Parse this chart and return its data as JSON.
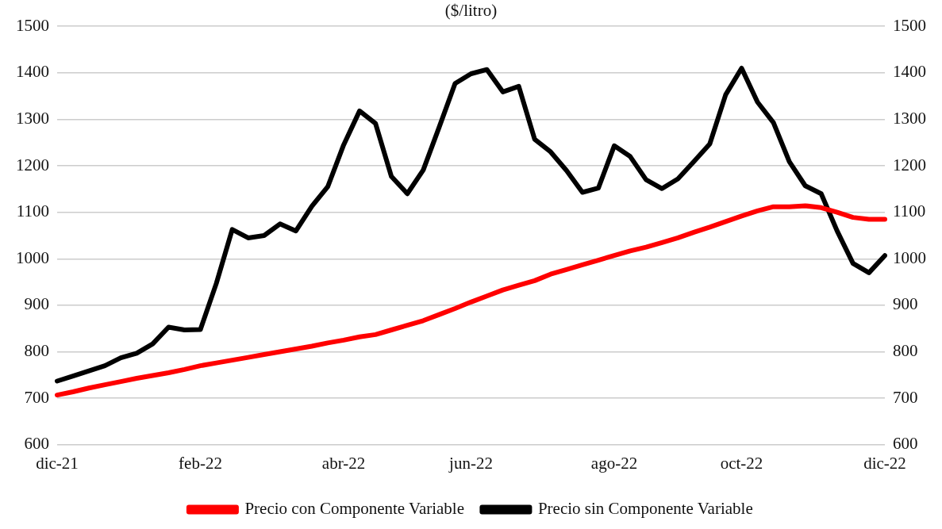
{
  "chart_data": {
    "type": "line",
    "title": "($/litro)",
    "categories": [
      "dic-21",
      null,
      null,
      null,
      null,
      null,
      null,
      null,
      null,
      "feb-22",
      null,
      null,
      null,
      null,
      null,
      null,
      null,
      null,
      "abr-22",
      null,
      null,
      null,
      null,
      null,
      null,
      null,
      "jun-22",
      null,
      null,
      null,
      null,
      null,
      null,
      null,
      null,
      "ago-22",
      null,
      null,
      null,
      null,
      null,
      null,
      null,
      "oct-22",
      null,
      null,
      null,
      null,
      null,
      null,
      null,
      null,
      "dic-22"
    ],
    "series": [
      {
        "name": "Precio con Componente Variable",
        "color": "#ff0000",
        "values": [
          707,
          714,
          722,
          729,
          736,
          743,
          749,
          755,
          762,
          770,
          776,
          782,
          788,
          794,
          800,
          806,
          812,
          819,
          825,
          832,
          837,
          847,
          857,
          867,
          880,
          893,
          907,
          920,
          933,
          943,
          953,
          967,
          977,
          987,
          997,
          1007,
          1017,
          1025,
          1035,
          1045,
          1057,
          1068,
          1080,
          1092,
          1103,
          1112,
          1112,
          1114,
          1110,
          1100,
          1089,
          1085,
          1085
        ]
      },
      {
        "name": "Precio sin Componente Variable",
        "color": "#000000",
        "values": [
          737,
          748,
          759,
          770,
          787,
          797,
          817,
          853,
          847,
          848,
          947,
          1063,
          1045,
          1050,
          1075,
          1060,
          1113,
          1155,
          1245,
          1318,
          1291,
          1177,
          1140,
          1191,
          1283,
          1377,
          1398,
          1407,
          1359,
          1371,
          1257,
          1230,
          1190,
          1143,
          1152,
          1243,
          1220,
          1170,
          1151,
          1172,
          1209,
          1247,
          1353,
          1410,
          1337,
          1293,
          1209,
          1157,
          1140,
          1060,
          990,
          970,
          1007
        ]
      }
    ],
    "ylim": [
      600,
      1500
    ],
    "yticks": [
      600,
      700,
      800,
      900,
      1000,
      1100,
      1200,
      1300,
      1400,
      1500
    ],
    "y2lim": [
      600,
      1500
    ],
    "y2ticks": [
      600,
      700,
      800,
      900,
      1000,
      1100,
      1200,
      1300,
      1400,
      1500
    ],
    "grid": "y",
    "legend": "bottom",
    "marker": "none",
    "line_style": "solid"
  }
}
